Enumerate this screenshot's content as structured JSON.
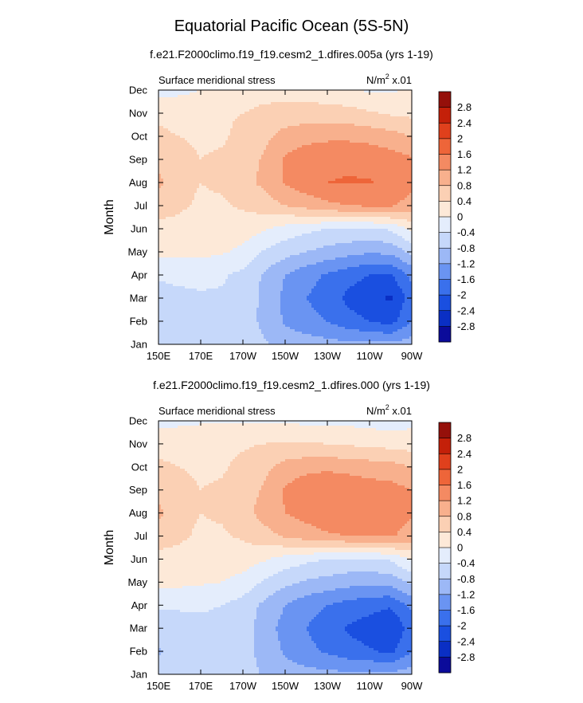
{
  "title": "Equatorial Pacific Ocean (5S-5N)",
  "units_text": "N/m",
  "units_exp": "2",
  "units_scale": " x.01",
  "palette": [
    "#0b0b9a",
    "#0a2fc4",
    "#1a4fe0",
    "#3a70ec",
    "#6a94f2",
    "#9cb8f6",
    "#c6d8fa",
    "#e4edfc",
    "#fde9d8",
    "#fbd0b4",
    "#f8b08d",
    "#f48a62",
    "#ee6539",
    "#e0401c",
    "#c42009",
    "#95100a"
  ],
  "chart_data": [
    {
      "type": "contour",
      "case_title": "f.e21.F2000climo.f19_f19.cesm2_1.dfires.005a (yrs 1-19)",
      "subtitle_left": "Surface meridional stress",
      "ylabel": "Month",
      "x_ticks": [
        "150E",
        "170E",
        "170W",
        "150W",
        "130W",
        "110W",
        "90W"
      ],
      "y_ticks": [
        "Jan",
        "Feb",
        "Mar",
        "Apr",
        "May",
        "Jun",
        "Jul",
        "Aug",
        "Sep",
        "Oct",
        "Nov",
        "Dec"
      ],
      "x_range": [
        150,
        270
      ],
      "y_range": [
        1,
        12
      ],
      "colorbar_levels": [
        "-2.8",
        "-2.4",
        "-2",
        "-1.6",
        "-1.2",
        "-0.8",
        "-0.4",
        "0",
        "0.4",
        "0.8",
        "1.2",
        "1.6",
        "2",
        "2.4",
        "2.8"
      ],
      "lon": [
        150,
        160,
        170,
        180,
        190,
        200,
        210,
        220,
        230,
        240,
        250,
        260,
        270
      ],
      "values": [
        [
          -0.55,
          -0.55,
          -0.5,
          -0.45,
          -0.55,
          -0.75,
          -0.95,
          -1.0,
          -1.05,
          -1.1,
          -1.1,
          -1.1,
          -1.0
        ],
        [
          -0.65,
          -0.6,
          -0.55,
          -0.5,
          -0.6,
          -0.9,
          -1.25,
          -1.45,
          -1.6,
          -1.85,
          -2.0,
          -2.15,
          -1.6
        ],
        [
          -0.55,
          -0.5,
          -0.45,
          -0.45,
          -0.55,
          -0.9,
          -1.3,
          -1.6,
          -1.8,
          -2.1,
          -2.3,
          -2.45,
          -1.8
        ],
        [
          -0.35,
          -0.3,
          -0.3,
          -0.35,
          -0.5,
          -0.85,
          -1.2,
          -1.45,
          -1.65,
          -1.85,
          -2.0,
          -2.05,
          -1.5
        ],
        [
          0.1,
          0.1,
          0.1,
          0.05,
          -0.1,
          -0.45,
          -0.65,
          -0.8,
          -0.95,
          -1.05,
          -1.15,
          -1.1,
          -0.7
        ],
        [
          0.3,
          0.3,
          0.25,
          0.25,
          0.2,
          0.05,
          -0.15,
          -0.3,
          -0.4,
          -0.45,
          -0.45,
          -0.35,
          0.1
        ],
        [
          0.55,
          0.45,
          0.35,
          0.35,
          0.45,
          0.6,
          0.8,
          0.95,
          1.1,
          1.2,
          1.25,
          1.25,
          1.05
        ],
        [
          0.9,
          0.5,
          0.4,
          0.45,
          0.65,
          0.9,
          1.25,
          1.45,
          1.6,
          1.62,
          1.62,
          1.5,
          1.3
        ],
        [
          0.65,
          0.5,
          0.4,
          0.45,
          0.6,
          0.85,
          1.25,
          1.45,
          1.55,
          1.55,
          1.5,
          1.4,
          1.25
        ],
        [
          0.45,
          0.4,
          0.35,
          0.35,
          0.5,
          0.7,
          0.95,
          1.05,
          1.1,
          1.1,
          1.05,
          0.95,
          0.8
        ],
        [
          0.35,
          0.3,
          0.3,
          0.35,
          0.4,
          0.5,
          0.55,
          0.6,
          0.6,
          0.55,
          0.45,
          0.35,
          0.3
        ],
        [
          -0.15,
          -0.1,
          0.0,
          0.15,
          0.2,
          0.25,
          0.25,
          0.2,
          0.1,
          0.05,
          -0.05,
          -0.05,
          0.05
        ]
      ]
    },
    {
      "type": "contour",
      "case_title": "f.e21.F2000climo.f19_f19.cesm2_1.dfires.000 (yrs 1-19)",
      "subtitle_left": "Surface meridional stress",
      "ylabel": "Month",
      "x_ticks": [
        "150E",
        "170E",
        "170W",
        "150W",
        "130W",
        "110W",
        "90W"
      ],
      "y_ticks": [
        "Jan",
        "Feb",
        "Mar",
        "Apr",
        "May",
        "Jun",
        "Jul",
        "Aug",
        "Sep",
        "Oct",
        "Nov",
        "Dec"
      ],
      "x_range": [
        150,
        270
      ],
      "y_range": [
        1,
        12
      ],
      "colorbar_levels": [
        "-2.8",
        "-2.4",
        "-2",
        "-1.6",
        "-1.2",
        "-0.8",
        "-0.4",
        "0",
        "0.4",
        "0.8",
        "1.2",
        "1.6",
        "2",
        "2.4",
        "2.8"
      ],
      "lon": [
        150,
        160,
        170,
        180,
        190,
        200,
        210,
        220,
        230,
        240,
        250,
        260,
        270
      ],
      "values": [
        [
          -0.6,
          -0.55,
          -0.5,
          -0.5,
          -0.6,
          -0.85,
          -1.0,
          -1.05,
          -1.1,
          -1.1,
          -1.1,
          -1.1,
          -1.0
        ],
        [
          -0.85,
          -0.65,
          -0.6,
          -0.55,
          -0.65,
          -0.95,
          -1.25,
          -1.5,
          -1.65,
          -1.85,
          -1.95,
          -2.1,
          -1.6
        ],
        [
          -0.6,
          -0.55,
          -0.5,
          -0.5,
          -0.6,
          -1.0,
          -1.35,
          -1.6,
          -1.8,
          -2.05,
          -2.2,
          -2.4,
          -1.8
        ],
        [
          -0.35,
          -0.35,
          -0.35,
          -0.4,
          -0.55,
          -0.9,
          -1.2,
          -1.45,
          -1.6,
          -1.75,
          -1.85,
          -1.95,
          -1.5
        ],
        [
          0.1,
          0.1,
          0.05,
          0.0,
          -0.15,
          -0.45,
          -0.7,
          -0.85,
          -0.95,
          -1.05,
          -1.1,
          -1.05,
          -0.7
        ],
        [
          0.3,
          0.3,
          0.25,
          0.25,
          0.2,
          0.05,
          -0.15,
          -0.3,
          -0.4,
          -0.45,
          -0.45,
          -0.35,
          0.05
        ],
        [
          0.55,
          0.45,
          0.35,
          0.35,
          0.45,
          0.65,
          0.85,
          1.0,
          1.15,
          1.2,
          1.25,
          1.25,
          1.05
        ],
        [
          0.9,
          0.5,
          0.4,
          0.45,
          0.65,
          0.95,
          1.2,
          1.35,
          1.45,
          1.45,
          1.4,
          1.35,
          1.25
        ],
        [
          0.65,
          0.5,
          0.4,
          0.45,
          0.6,
          0.85,
          1.25,
          1.5,
          1.6,
          1.5,
          1.4,
          1.35,
          1.2
        ],
        [
          0.45,
          0.4,
          0.35,
          0.35,
          0.5,
          0.7,
          0.95,
          1.05,
          1.1,
          1.05,
          1.0,
          0.95,
          0.8
        ],
        [
          0.3,
          0.3,
          0.3,
          0.3,
          0.35,
          0.4,
          0.45,
          0.45,
          0.4,
          0.35,
          0.3,
          0.25,
          0.2
        ],
        [
          -0.15,
          -0.1,
          -0.05,
          -0.05,
          -0.05,
          -0.05,
          -0.05,
          -0.1,
          -0.1,
          -0.1,
          -0.15,
          -0.2,
          -0.1
        ]
      ]
    }
  ]
}
